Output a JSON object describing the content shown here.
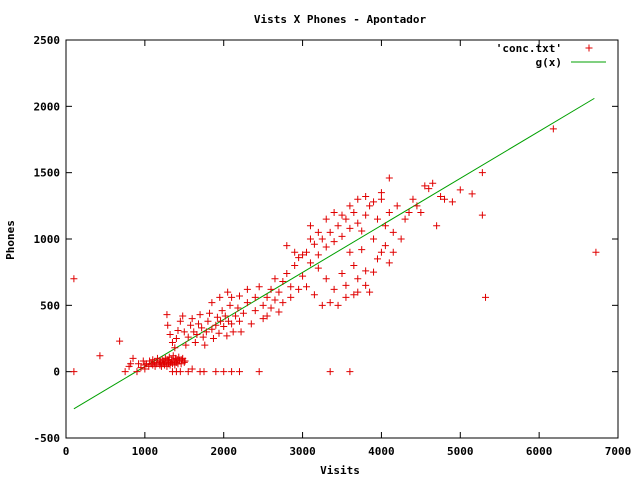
{
  "chart_data": {
    "type": "scatter",
    "title": "Vists X Phones - Apontador",
    "xlabel": "Visits",
    "ylabel": "Phones",
    "xlim": [
      0,
      7000
    ],
    "ylim": [
      -500,
      2500
    ],
    "xticks": [
      "0",
      "1000",
      "2000",
      "3000",
      "4000",
      "5000",
      "6000",
      "7000"
    ],
    "yticks": [
      "-500",
      "0",
      "500",
      "1000",
      "1500",
      "2000",
      "2500"
    ],
    "legend_position": "top-right",
    "grid": false,
    "series": [
      {
        "name": "'conc.txt'",
        "kind": "points",
        "marker": "plus",
        "color": "#e00000",
        "points": [
          [
            100,
            700
          ],
          [
            100,
            0
          ],
          [
            430,
            120
          ],
          [
            680,
            230
          ],
          [
            750,
            0
          ],
          [
            800,
            40
          ],
          [
            820,
            60
          ],
          [
            850,
            100
          ],
          [
            900,
            0
          ],
          [
            920,
            60
          ],
          [
            950,
            30
          ],
          [
            980,
            80
          ],
          [
            1000,
            50
          ],
          [
            1000,
            20
          ],
          [
            1020,
            60
          ],
          [
            1050,
            40
          ],
          [
            1060,
            80
          ],
          [
            1080,
            60
          ],
          [
            1100,
            50
          ],
          [
            1100,
            90
          ],
          [
            1120,
            70
          ],
          [
            1130,
            40
          ],
          [
            1150,
            60
          ],
          [
            1160,
            100
          ],
          [
            1180,
            80
          ],
          [
            1190,
            50
          ],
          [
            1200,
            70
          ],
          [
            1210,
            40
          ],
          [
            1220,
            90
          ],
          [
            1230,
            60
          ],
          [
            1240,
            80
          ],
          [
            1250,
            50
          ],
          [
            1260,
            100
          ],
          [
            1270,
            70
          ],
          [
            1280,
            40
          ],
          [
            1290,
            90
          ],
          [
            1300,
            60
          ],
          [
            1300,
            80
          ],
          [
            1310,
            110
          ],
          [
            1320,
            50
          ],
          [
            1330,
            70
          ],
          [
            1340,
            90
          ],
          [
            1350,
            60
          ],
          [
            1360,
            120
          ],
          [
            1370,
            80
          ],
          [
            1380,
            50
          ],
          [
            1390,
            100
          ],
          [
            1400,
            70
          ],
          [
            1410,
            90
          ],
          [
            1420,
            60
          ],
          [
            1430,
            110
          ],
          [
            1440,
            80
          ],
          [
            1450,
            0
          ],
          [
            1460,
            60
          ],
          [
            1470,
            90
          ],
          [
            1480,
            100
          ],
          [
            1500,
            70
          ],
          [
            1510,
            80
          ],
          [
            1350,
            0
          ],
          [
            1400,
            0
          ],
          [
            1550,
            0
          ],
          [
            1600,
            20
          ],
          [
            1700,
            0
          ],
          [
            1750,
            0
          ],
          [
            1900,
            0
          ],
          [
            2000,
            0
          ],
          [
            2100,
            0
          ],
          [
            2200,
            0
          ],
          [
            2450,
            0
          ],
          [
            3350,
            0
          ],
          [
            3600,
            0
          ],
          [
            1280,
            430
          ],
          [
            1290,
            350
          ],
          [
            1320,
            280
          ],
          [
            1350,
            220
          ],
          [
            1380,
            180
          ],
          [
            1400,
            250
          ],
          [
            1420,
            310
          ],
          [
            1450,
            380
          ],
          [
            1480,
            420
          ],
          [
            1500,
            300
          ],
          [
            1520,
            200
          ],
          [
            1550,
            260
          ],
          [
            1580,
            350
          ],
          [
            1600,
            400
          ],
          [
            1620,
            300
          ],
          [
            1640,
            220
          ],
          [
            1660,
            280
          ],
          [
            1680,
            360
          ],
          [
            1700,
            430
          ],
          [
            1720,
            330
          ],
          [
            1740,
            260
          ],
          [
            1760,
            200
          ],
          [
            1780,
            300
          ],
          [
            1800,
            380
          ],
          [
            1820,
            440
          ],
          [
            1850,
            320
          ],
          [
            1870,
            250
          ],
          [
            1900,
            350
          ],
          [
            1920,
            410
          ],
          [
            1940,
            290
          ],
          [
            1960,
            380
          ],
          [
            1980,
            460
          ],
          [
            2000,
            340
          ],
          [
            2020,
            420
          ],
          [
            2040,
            270
          ],
          [
            2060,
            380
          ],
          [
            2080,
            500
          ],
          [
            2100,
            360
          ],
          [
            2120,
            300
          ],
          [
            2150,
            420
          ],
          [
            2180,
            480
          ],
          [
            2200,
            380
          ],
          [
            2220,
            300
          ],
          [
            2250,
            440
          ],
          [
            2300,
            520
          ],
          [
            2350,
            360
          ],
          [
            2400,
            560
          ],
          [
            2450,
            640
          ],
          [
            2500,
            500
          ],
          [
            2550,
            420
          ],
          [
            2600,
            620
          ],
          [
            2650,
            700
          ],
          [
            2700,
            600
          ],
          [
            2750,
            680
          ],
          [
            2800,
            740
          ],
          [
            2850,
            640
          ],
          [
            2900,
            800
          ],
          [
            2950,
            860
          ],
          [
            3000,
            720
          ],
          [
            3050,
            900
          ],
          [
            3100,
            820
          ],
          [
            3150,
            960
          ],
          [
            3200,
            880
          ],
          [
            3250,
            1000
          ],
          [
            3300,
            940
          ],
          [
            3350,
            1050
          ],
          [
            3400,
            980
          ],
          [
            3450,
            1100
          ],
          [
            3500,
            1020
          ],
          [
            3550,
            1150
          ],
          [
            3600,
            1080
          ],
          [
            3650,
            1200
          ],
          [
            3700,
            1120
          ],
          [
            3750,
            1060
          ],
          [
            3800,
            1180
          ],
          [
            3850,
            1250
          ],
          [
            3900,
            1000
          ],
          [
            3950,
            1150
          ],
          [
            4000,
            1300
          ],
          [
            4050,
            1100
          ],
          [
            4100,
            1200
          ],
          [
            4150,
            1050
          ],
          [
            4200,
            1250
          ],
          [
            4250,
            1000
          ],
          [
            4300,
            1150
          ],
          [
            4350,
            1200
          ],
          [
            4400,
            1300
          ],
          [
            4450,
            1250
          ],
          [
            4500,
            1200
          ],
          [
            4550,
            1400
          ],
          [
            4600,
            1380
          ],
          [
            4650,
            1420
          ],
          [
            4700,
            1100
          ],
          [
            4750,
            1320
          ],
          [
            4800,
            1300
          ],
          [
            4900,
            1280
          ],
          [
            5000,
            1370
          ],
          [
            5150,
            1340
          ],
          [
            5280,
            1500
          ],
          [
            5280,
            1180
          ],
          [
            5320,
            560
          ],
          [
            6180,
            1830
          ],
          [
            6720,
            900
          ],
          [
            2800,
            950
          ],
          [
            2900,
            900
          ],
          [
            3000,
            880
          ],
          [
            3100,
            1000
          ],
          [
            3200,
            780
          ],
          [
            3300,
            700
          ],
          [
            3400,
            620
          ],
          [
            3450,
            500
          ],
          [
            3500,
            740
          ],
          [
            3550,
            650
          ],
          [
            3600,
            900
          ],
          [
            3650,
            800
          ],
          [
            3700,
            700
          ],
          [
            3750,
            920
          ],
          [
            3800,
            650
          ],
          [
            3850,
            600
          ],
          [
            3900,
            750
          ],
          [
            3950,
            850
          ],
          [
            4000,
            900
          ],
          [
            4050,
            950
          ],
          [
            4100,
            820
          ],
          [
            4150,
            900
          ],
          [
            2600,
            480
          ],
          [
            2700,
            450
          ],
          [
            2750,
            520
          ],
          [
            2850,
            560
          ],
          [
            2950,
            620
          ],
          [
            3050,
            640
          ],
          [
            3150,
            580
          ],
          [
            3250,
            500
          ],
          [
            3350,
            520
          ],
          [
            3550,
            560
          ],
          [
            3650,
            580
          ],
          [
            3700,
            600
          ],
          [
            3800,
            760
          ],
          [
            3100,
            1100
          ],
          [
            3200,
            1050
          ],
          [
            3300,
            1150
          ],
          [
            3400,
            1200
          ],
          [
            3500,
            1180
          ],
          [
            3600,
            1250
          ],
          [
            3700,
            1300
          ],
          [
            3800,
            1320
          ],
          [
            3900,
            1280
          ],
          [
            4000,
            1350
          ],
          [
            4100,
            1460
          ],
          [
            2200,
            570
          ],
          [
            2300,
            620
          ],
          [
            2400,
            460
          ],
          [
            2500,
            400
          ],
          [
            2550,
            560
          ],
          [
            2650,
            540
          ],
          [
            1850,
            520
          ],
          [
            1950,
            560
          ],
          [
            2050,
            600
          ],
          [
            2100,
            560
          ]
        ]
      },
      {
        "name": "g(x)",
        "kind": "line",
        "color": "#00a000",
        "x": [
          100,
          6700
        ],
        "y": [
          -280,
          2060
        ]
      }
    ]
  }
}
